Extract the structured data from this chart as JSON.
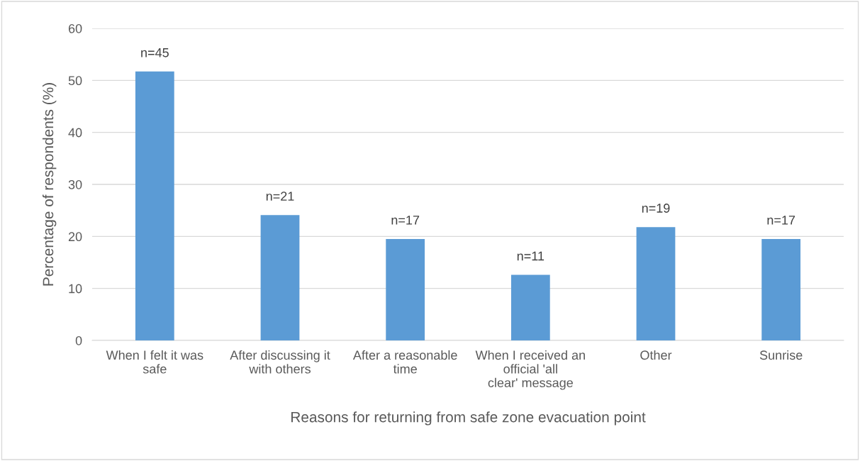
{
  "chart_data": {
    "type": "bar",
    "xlabel": "Reasons for returning from safe zone evacuation point",
    "ylabel": "Percentage of respondents (%)",
    "categories": [
      "When I felt it was safe",
      "After discussing it with others",
      "After a reasonable time",
      "When I received an official 'all clear' message",
      "Other",
      "Sunrise"
    ],
    "values": [
      51.7,
      24.1,
      19.5,
      12.6,
      21.8,
      19.5
    ],
    "annotations": [
      {
        "text": "n=45",
        "x": "When I felt it was safe",
        "y": 51.7
      },
      {
        "text": "n=21",
        "x": "After discussing it with others",
        "y": 24.1
      },
      {
        "text": "n=17",
        "x": "After a reasonable time",
        "y": 19.5
      },
      {
        "text": "n=11",
        "x": "When I received an official 'all clear' message",
        "y": 12.6
      },
      {
        "text": "n=19",
        "x": "Other",
        "y": 21.8
      },
      {
        "text": "n=17",
        "x": "Sunrise",
        "y": 19.5
      }
    ],
    "color": "#5b9bd5",
    "ylim": [
      0,
      60
    ],
    "yticks": [
      0,
      10,
      20,
      30,
      40,
      50,
      60
    ],
    "grid": "y",
    "legend": false
  }
}
